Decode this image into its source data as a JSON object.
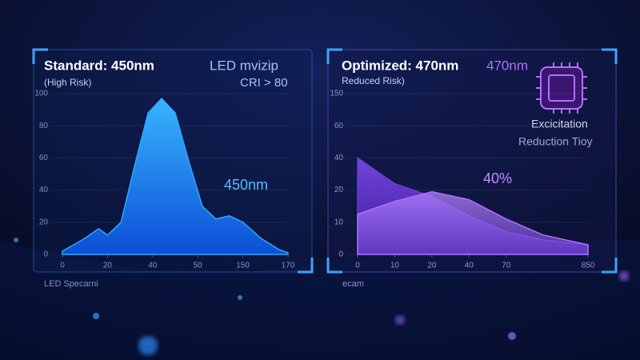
{
  "chart_data": [
    {
      "type": "area",
      "title": "Standard: 450nm",
      "subtitle": "(High Risk)",
      "annotations": [
        "LED mvizip",
        "CRI > 80",
        "450nm",
        "LED Specarni"
      ],
      "x": [
        0,
        0.5,
        0.8,
        1.0,
        1.3,
        1.6,
        1.9,
        2.2,
        2.5,
        2.8,
        3.1,
        3.4,
        3.7,
        4.0,
        4.4,
        4.8,
        5.0
      ],
      "series": [
        {
          "color": "#2ea8ff",
          "values": [
            2,
            10,
            16,
            12,
            20,
            55,
            88,
            97,
            88,
            58,
            30,
            22,
            24,
            20,
            10,
            3,
            1
          ]
        }
      ],
      "xlim": [
        0,
        5
      ],
      "ylim": [
        0,
        100
      ],
      "xticks": [
        {
          "value": 0,
          "label": "0"
        },
        {
          "value": 1,
          "label": "20"
        },
        {
          "value": 2,
          "label": "40"
        },
        {
          "value": 3,
          "label": "50"
        },
        {
          "value": 4,
          "label": "150"
        },
        {
          "value": 5,
          "label": "170"
        }
      ],
      "yticks": [
        0,
        20,
        40,
        60,
        80,
        100
      ],
      "grid": true
    },
    {
      "type": "area",
      "title": "Optimized: 470nm",
      "subtitle": "Reduced Risk)",
      "annotations": [
        "470nm",
        "Excicitation",
        "Reduction Tioy",
        "40%",
        "ecam"
      ],
      "x": [
        0,
        1,
        2,
        3,
        4,
        5,
        6.2
      ],
      "series": [
        {
          "color": "#6a3ad8",
          "values": [
            3,
            2.2,
            1.8,
            1.2,
            0.7,
            0.45,
            0.3
          ]
        },
        {
          "color": "#b06cff",
          "values": [
            1.25,
            1.65,
            1.95,
            1.7,
            1.1,
            0.6,
            0.3
          ]
        }
      ],
      "xlim": [
        0,
        6.2
      ],
      "ylim": [
        0,
        5
      ],
      "xticks": [
        {
          "value": 0,
          "label": "0"
        },
        {
          "value": 1,
          "label": "10"
        },
        {
          "value": 2,
          "label": "20"
        },
        {
          "value": 3,
          "label": "40"
        },
        {
          "value": 4,
          "label": "70"
        },
        {
          "value": 6.2,
          "label": "850"
        }
      ],
      "yticks": [
        {
          "value": 0,
          "label": "0"
        },
        {
          "value": 1,
          "label": "10"
        },
        {
          "value": 2,
          "label": "20"
        },
        {
          "value": 3,
          "label": "40"
        },
        {
          "value": 4,
          "label": "60"
        },
        {
          "value": 5,
          "label": "150"
        }
      ],
      "grid": true
    }
  ]
}
